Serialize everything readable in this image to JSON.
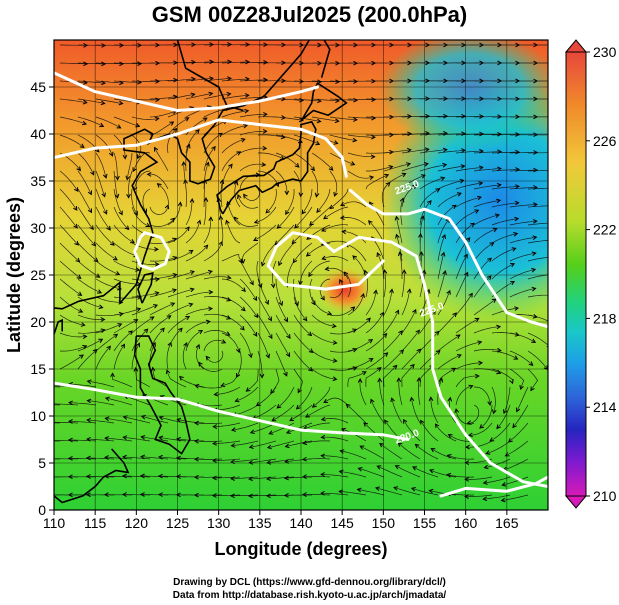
{
  "title": "GSM 00Z28Jul2025 (200.0hPa)",
  "xaxis": {
    "label": "Longitude (degrees)",
    "range": [
      110,
      170
    ],
    "ticks": [
      110,
      115,
      120,
      125,
      130,
      135,
      140,
      145,
      150,
      155,
      160,
      165
    ]
  },
  "yaxis": {
    "label": "Latitude  (degrees)",
    "range": [
      0,
      50
    ],
    "ticks": [
      0,
      5,
      10,
      15,
      20,
      25,
      30,
      35,
      40,
      45
    ]
  },
  "colorbar": {
    "ticks": [
      230,
      226,
      222,
      218,
      214,
      210
    ],
    "colors": [
      "#e8473b",
      "#f08a2a",
      "#f2c83a",
      "#b9dc2c",
      "#55cf1a",
      "#22d27a",
      "#19c8c8",
      "#1d9fe6",
      "#2e63d8",
      "#2525c0",
      "#7a1ad0",
      "#d81ab8"
    ]
  },
  "contours": [
    {
      "label": "225.0",
      "lon": 153,
      "lat": 34
    },
    {
      "label": "225.0",
      "lon": 156,
      "lat": 21
    },
    {
      "label": "220.0",
      "lon": 153,
      "lat": 7.5
    }
  ],
  "credits": {
    "line1": "Drawing by DCL (https://www.gfd-dennou.org/library/dcl/)",
    "line2": "Data from http://database.rish.kyoto-u.ac.jp/arch/jmadata/"
  }
}
